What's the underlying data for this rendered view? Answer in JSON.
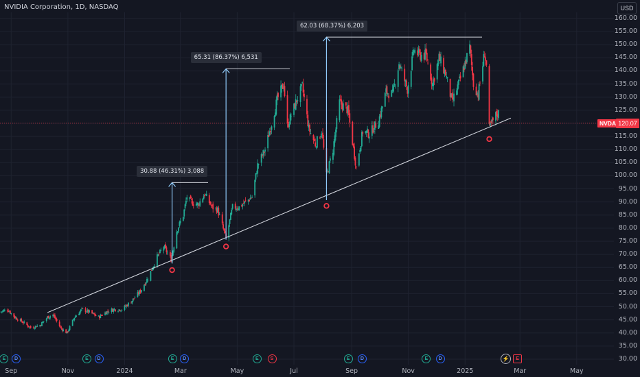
{
  "header": {
    "title": "NVIDIA Corporation, 1D, NASDAQ",
    "currency": "USD"
  },
  "price_tags": {
    "ticker": "NVDA",
    "last_price": "120.07"
  },
  "colors": {
    "background": "#141722",
    "up": "#22ab94",
    "down": "#f23645",
    "trendline": "#d1d4dc",
    "measure_arrow": "#90caf9",
    "low_marker": "#f23645"
  },
  "measurements": [
    {
      "label": "30.88 (46.31%) 3,088",
      "from_date": "2024-02-21",
      "from_price": 66.5,
      "to_price": 97.4
    },
    {
      "label": "65.31 (86.37%) 6,531",
      "from_date": "2024-04-19",
      "from_price": 75.6,
      "to_price": 140.8
    },
    {
      "label": "62.03 (68.37%) 6,203",
      "from_date": "2024-08-05",
      "from_price": 90.7,
      "to_price": 152.9
    }
  ],
  "chart_data": {
    "type": "candlestick",
    "title": "NVIDIA Corporation, 1D, NASDAQ",
    "symbol": "NVDA",
    "ylim": [
      29,
      162
    ],
    "y_ticks": [
      "30.00",
      "35.00",
      "40.00",
      "45.00",
      "50.00",
      "55.00",
      "60.00",
      "65.00",
      "70.00",
      "75.00",
      "80.00",
      "85.00",
      "90.00",
      "95.00",
      "100.00",
      "105.00",
      "110.00",
      "115.00",
      "120.00",
      "125.00",
      "130.00",
      "135.00",
      "140.00",
      "145.00",
      "150.00",
      "155.00",
      "160.00"
    ],
    "x_ticks": [
      "Sep",
      "Nov",
      "2024",
      "Mar",
      "May",
      "Jul",
      "Sep",
      "Nov",
      "2025",
      "Mar",
      "May"
    ],
    "x_range": [
      "2023-08-20",
      "2025-06-10"
    ],
    "last_price": 120.07,
    "trendline": {
      "start_date": "2023-10-10",
      "start_price": 47.8,
      "end_date": "2025-01-22",
      "end_price": 117.8
    },
    "swing_lows": [
      {
        "date": "2024-02-21",
        "price": 64.0
      },
      {
        "date": "2024-04-19",
        "price": 73.0
      },
      {
        "date": "2024-08-05",
        "price": 88.5
      },
      {
        "date": "2025-01-27",
        "price": 114.0
      }
    ],
    "price_path": [
      [
        "2023-08-20",
        48
      ],
      [
        "2023-08-28",
        49
      ],
      [
        "2023-09-05",
        46
      ],
      [
        "2023-09-14",
        44
      ],
      [
        "2023-09-22",
        42
      ],
      [
        "2023-10-02",
        43
      ],
      [
        "2023-10-10",
        46
      ],
      [
        "2023-10-16",
        47
      ],
      [
        "2023-10-24",
        42
      ],
      [
        "2023-10-31",
        40
      ],
      [
        "2023-11-08",
        46
      ],
      [
        "2023-11-16",
        49
      ],
      [
        "2023-11-24",
        48
      ],
      [
        "2023-12-04",
        46
      ],
      [
        "2023-12-12",
        48
      ],
      [
        "2023-12-20",
        49
      ],
      [
        "2023-12-29",
        49
      ],
      [
        "2024-01-08",
        52
      ],
      [
        "2024-01-18",
        56
      ],
      [
        "2024-01-26",
        61
      ],
      [
        "2024-02-05",
        69
      ],
      [
        "2024-02-12",
        73
      ],
      [
        "2024-02-20",
        68
      ],
      [
        "2024-02-26",
        79
      ],
      [
        "2024-03-04",
        85
      ],
      [
        "2024-03-08",
        92
      ],
      [
        "2024-03-12",
        90
      ],
      [
        "2024-03-20",
        89
      ],
      [
        "2024-03-27",
        93
      ],
      [
        "2024-04-04",
        88
      ],
      [
        "2024-04-10",
        87
      ],
      [
        "2024-04-19",
        76
      ],
      [
        "2024-04-26",
        88
      ],
      [
        "2024-05-03",
        88
      ],
      [
        "2024-05-10",
        90
      ],
      [
        "2024-05-17",
        92
      ],
      [
        "2024-05-23",
        104
      ],
      [
        "2024-05-31",
        110
      ],
      [
        "2024-06-07",
        120
      ],
      [
        "2024-06-13",
        129
      ],
      [
        "2024-06-20",
        135
      ],
      [
        "2024-06-24",
        119
      ],
      [
        "2024-07-03",
        128
      ],
      [
        "2024-07-10",
        134
      ],
      [
        "2024-07-17",
        118
      ],
      [
        "2024-07-24",
        112
      ],
      [
        "2024-07-31",
        117
      ],
      [
        "2024-08-05",
        100
      ],
      [
        "2024-08-12",
        110
      ],
      [
        "2024-08-19",
        128
      ],
      [
        "2024-08-28",
        125
      ],
      [
        "2024-09-06",
        103
      ],
      [
        "2024-09-13",
        117
      ],
      [
        "2024-09-20",
        116
      ],
      [
        "2024-09-30",
        121
      ],
      [
        "2024-10-08",
        132
      ],
      [
        "2024-10-15",
        131
      ],
      [
        "2024-10-22",
        143
      ],
      [
        "2024-10-31",
        133
      ],
      [
        "2024-11-07",
        148
      ],
      [
        "2024-11-13",
        146
      ],
      [
        "2024-11-20",
        146
      ],
      [
        "2024-11-27",
        135
      ],
      [
        "2024-12-04",
        145
      ],
      [
        "2024-12-11",
        139
      ],
      [
        "2024-12-18",
        128
      ],
      [
        "2024-12-27",
        137
      ],
      [
        "2025-01-06",
        149
      ],
      [
        "2025-01-10",
        135
      ],
      [
        "2025-01-15",
        131
      ],
      [
        "2025-01-22",
        147
      ],
      [
        "2025-01-24",
        142
      ],
      [
        "2025-01-27",
        118
      ],
      [
        "2025-02-03",
        123
      ],
      [
        "2025-02-06",
        124
      ]
    ]
  },
  "events": {
    "earnings": "E",
    "dividend": "D",
    "split": "S"
  }
}
